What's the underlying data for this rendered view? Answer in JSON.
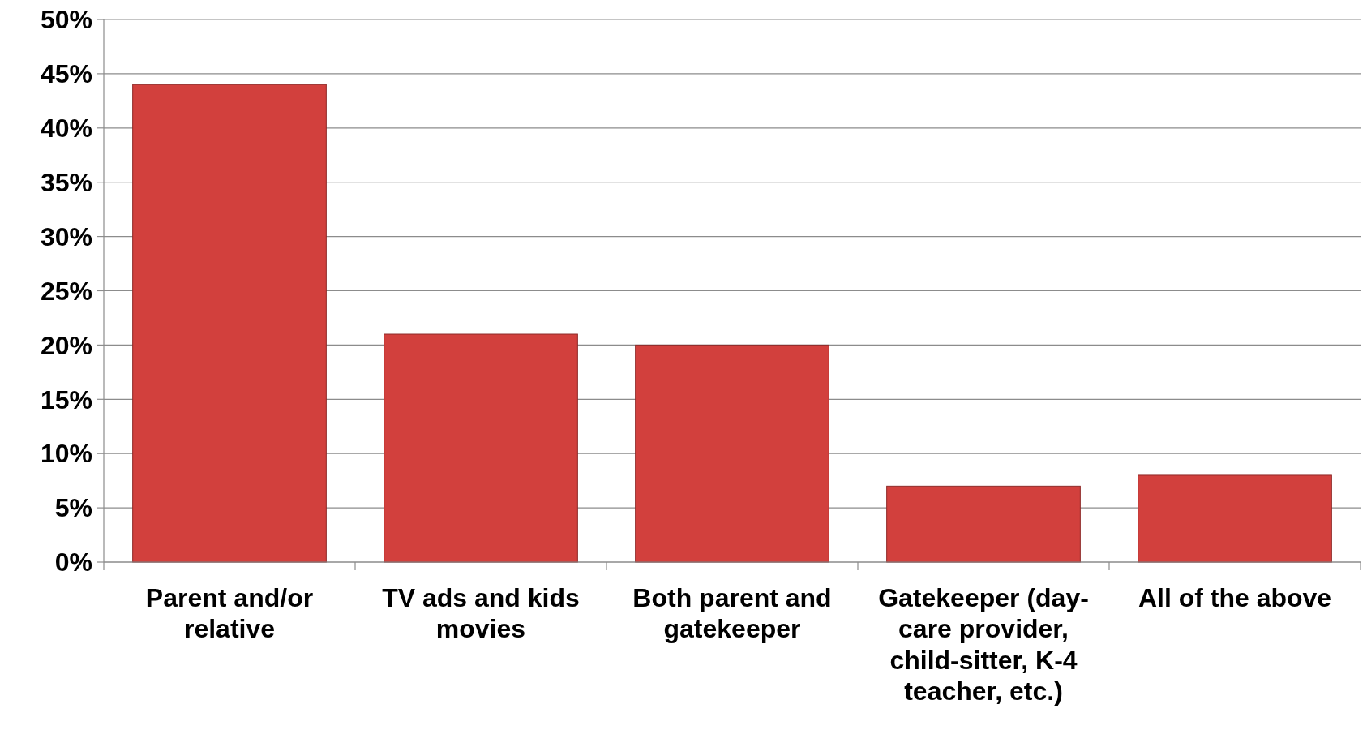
{
  "chart_data": {
    "type": "bar",
    "categories": [
      "Parent and/or relative",
      "TV ads and kids movies",
      "Both parent and gatekeeper",
      "Gatekeeper (day-care provider, child-sitter, K-4 teacher, etc.)",
      "All of the above"
    ],
    "values": [
      44,
      21,
      20,
      7,
      8
    ],
    "color": "#d2403d",
    "ylim": [
      0,
      50
    ],
    "yticks": [
      {
        "value": 0,
        "label": "0%"
      },
      {
        "value": 5,
        "label": "5%"
      },
      {
        "value": 10,
        "label": "10%"
      },
      {
        "value": 15,
        "label": "15%"
      },
      {
        "value": 20,
        "label": "20%"
      },
      {
        "value": 25,
        "label": "25%"
      },
      {
        "value": 30,
        "label": "30%"
      },
      {
        "value": 35,
        "label": "35%"
      },
      {
        "value": 40,
        "label": "40%"
      },
      {
        "value": 45,
        "label": "45%"
      },
      {
        "value": 50,
        "label": "50%"
      }
    ],
    "grid": "y"
  }
}
